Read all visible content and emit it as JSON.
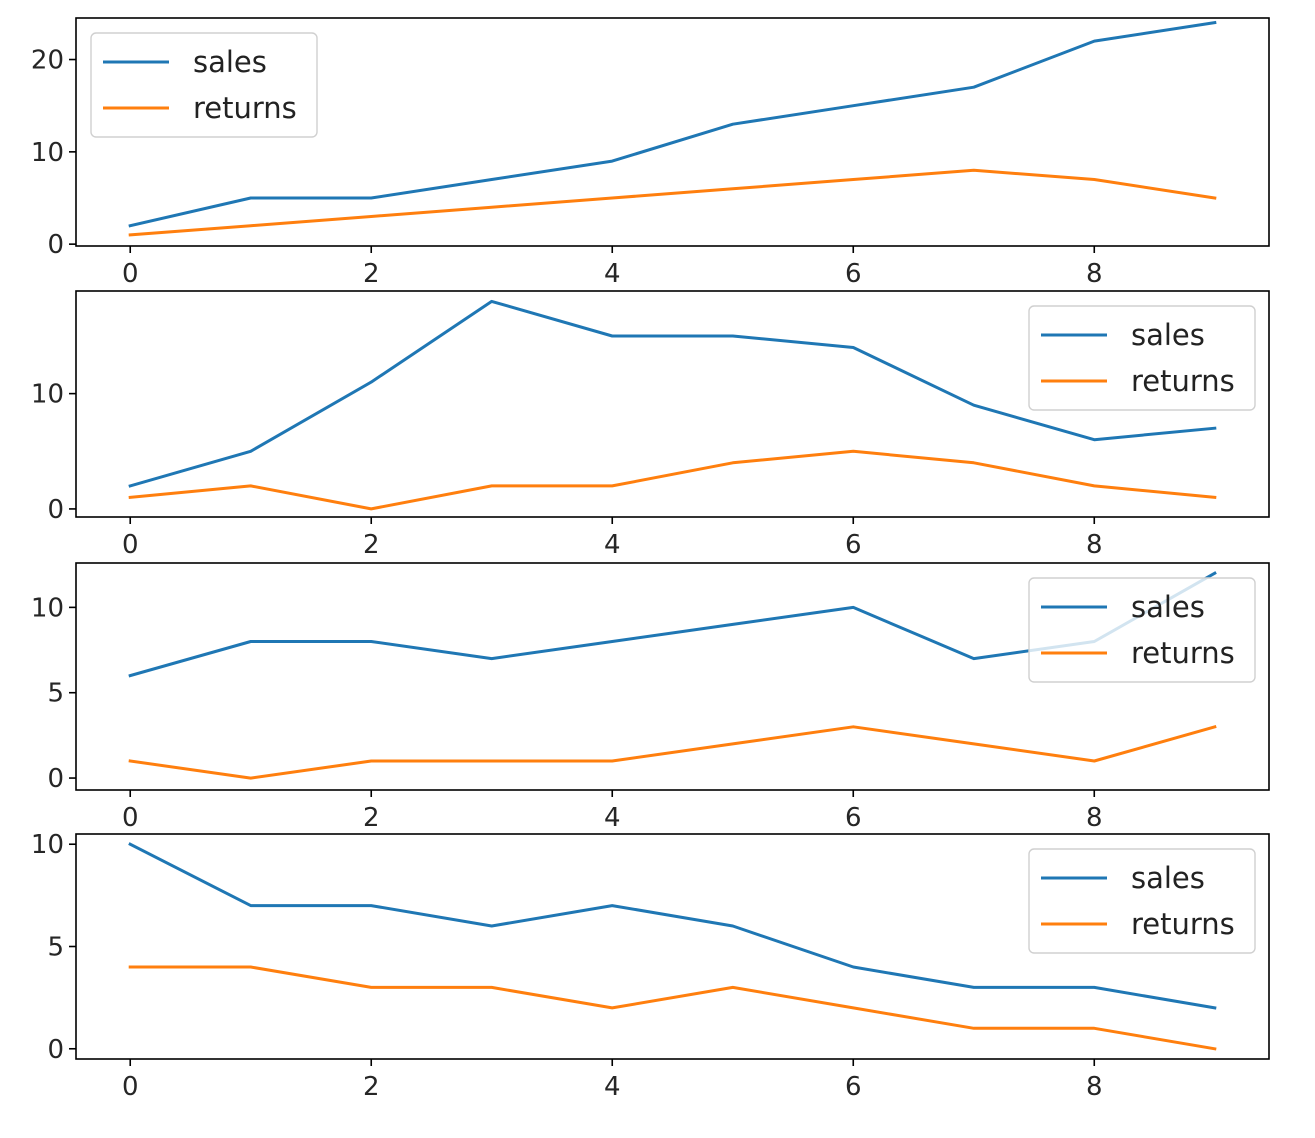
{
  "chart_data": [
    {
      "type": "line",
      "x": [
        0,
        1,
        2,
        3,
        4,
        5,
        6,
        7,
        8,
        9
      ],
      "xlim": [
        -0.45,
        9.45
      ],
      "ylim": [
        -0.2,
        24.5
      ],
      "xticks": [
        0,
        2,
        4,
        6,
        8
      ],
      "yticks": [
        0,
        10,
        20
      ],
      "legend": "top-left",
      "grid": false,
      "series": [
        {
          "name": "sales",
          "color": "#1f77b4",
          "values": [
            2,
            5,
            5,
            7,
            9,
            13,
            15,
            17,
            22,
            24
          ]
        },
        {
          "name": "returns",
          "color": "#ff7f0e",
          "values": [
            1,
            2,
            3,
            4,
            5,
            6,
            7,
            8,
            7,
            5
          ]
        }
      ]
    },
    {
      "type": "line",
      "x": [
        0,
        1,
        2,
        3,
        4,
        5,
        6,
        7,
        8,
        9
      ],
      "xlim": [
        -0.45,
        9.45
      ],
      "ylim": [
        -0.7,
        18.9
      ],
      "xticks": [
        0,
        2,
        4,
        6,
        8
      ],
      "yticks": [
        0,
        10
      ],
      "legend": "top-right",
      "grid": false,
      "series": [
        {
          "name": "sales",
          "color": "#1f77b4",
          "values": [
            2,
            5,
            11,
            18,
            15,
            15,
            14,
            9,
            6,
            7
          ]
        },
        {
          "name": "returns",
          "color": "#ff7f0e",
          "values": [
            1,
            2,
            0,
            2,
            2,
            4,
            5,
            4,
            2,
            1
          ]
        }
      ]
    },
    {
      "type": "line",
      "x": [
        0,
        1,
        2,
        3,
        4,
        5,
        6,
        7,
        8,
        9
      ],
      "xlim": [
        -0.45,
        9.45
      ],
      "ylim": [
        -0.7,
        12.6
      ],
      "xticks": [
        0,
        2,
        4,
        6,
        8
      ],
      "yticks": [
        0,
        5,
        10
      ],
      "legend": "top-right",
      "grid": false,
      "series": [
        {
          "name": "sales",
          "color": "#1f77b4",
          "values": [
            6,
            8,
            8,
            7,
            8,
            9,
            10,
            7,
            8,
            12
          ]
        },
        {
          "name": "returns",
          "color": "#ff7f0e",
          "values": [
            1,
            0,
            1,
            1,
            1,
            2,
            3,
            2,
            1,
            3
          ]
        }
      ]
    },
    {
      "type": "line",
      "x": [
        0,
        1,
        2,
        3,
        4,
        5,
        6,
        7,
        8,
        9
      ],
      "xlim": [
        -0.45,
        9.45
      ],
      "ylim": [
        -0.5,
        10.5
      ],
      "xticks": [
        0,
        2,
        4,
        6,
        8
      ],
      "yticks": [
        0,
        5,
        10
      ],
      "legend": "top-right",
      "grid": false,
      "series": [
        {
          "name": "sales",
          "color": "#1f77b4",
          "values": [
            10,
            7,
            7,
            6,
            7,
            6,
            4,
            3,
            3,
            2
          ]
        },
        {
          "name": "returns",
          "color": "#ff7f0e",
          "values": [
            4,
            4,
            3,
            3,
            2,
            3,
            2,
            1,
            1,
            0
          ]
        }
      ]
    }
  ]
}
